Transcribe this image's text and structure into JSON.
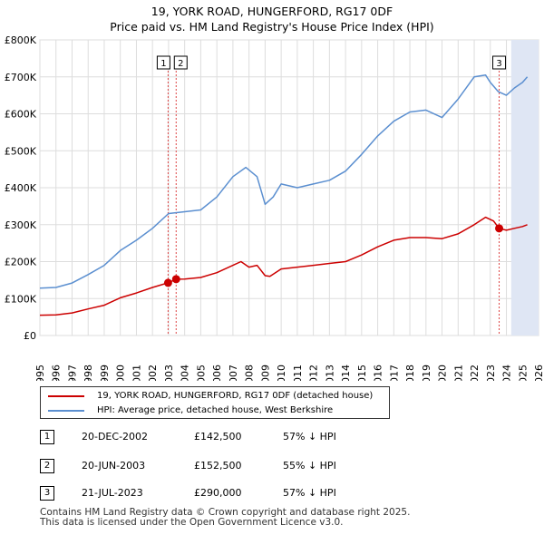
{
  "header": {
    "title_line1": "19, YORK ROAD, HUNGERFORD, RG17 0DF",
    "title_line2": "Price paid vs. HM Land Registry's House Price Index (HPI)"
  },
  "chart_data": {
    "type": "line",
    "title": "19, YORK ROAD, HUNGERFORD, RG17 0DF",
    "subtitle": "Price paid vs. HM Land Registry's House Price Index (HPI)",
    "xlabel": "",
    "ylabel": "",
    "xlim": [
      1995,
      2026
    ],
    "ylim": [
      0,
      800000
    ],
    "x_ticks": [
      "1995",
      "1996",
      "1997",
      "1998",
      "1999",
      "2000",
      "2001",
      "2002",
      "2003",
      "2004",
      "2005",
      "2006",
      "2007",
      "2008",
      "2009",
      "2010",
      "2011",
      "2012",
      "2013",
      "2014",
      "2015",
      "2016",
      "2017",
      "2018",
      "2019",
      "2020",
      "2021",
      "2022",
      "2023",
      "2024",
      "2025",
      "2026"
    ],
    "y_ticks": [
      {
        "value": 0,
        "label": "£0"
      },
      {
        "value": 100000,
        "label": "£100K"
      },
      {
        "value": 200000,
        "label": "£200K"
      },
      {
        "value": 300000,
        "label": "£300K"
      },
      {
        "value": 400000,
        "label": "£400K"
      },
      {
        "value": 500000,
        "label": "£500K"
      },
      {
        "value": 600000,
        "label": "£600K"
      },
      {
        "value": 700000,
        "label": "£700K"
      },
      {
        "value": 800000,
        "label": "£800K"
      }
    ],
    "grid": true,
    "shaded_region": {
      "from": 2024.3,
      "to": 2026
    },
    "series": [
      {
        "name": "19, YORK ROAD, HUNGERFORD, RG17 0DF (detached house)",
        "color": "#cc0000",
        "x": [
          1995,
          1996,
          1997,
          1998,
          1999,
          2000,
          2001,
          2002,
          2002.97,
          2003.47,
          2004,
          2005,
          2006,
          2007,
          2007.5,
          2008,
          2008.5,
          2009,
          2009.3,
          2010,
          2011,
          2012,
          2013,
          2014,
          2015,
          2016,
          2017,
          2018,
          2019,
          2020,
          2021,
          2022,
          2022.7,
          2023.2,
          2023.55,
          2024,
          2024.5,
          2025,
          2025.3
        ],
        "y": [
          55000,
          56000,
          61000,
          72000,
          82000,
          102000,
          115000,
          130000,
          142500,
          152500,
          153000,
          157000,
          170000,
          190000,
          200000,
          185000,
          190000,
          162000,
          160000,
          180000,
          185000,
          190000,
          195000,
          200000,
          218000,
          240000,
          258000,
          265000,
          265000,
          262000,
          275000,
          300000,
          320000,
          310000,
          290000,
          285000,
          290000,
          295000,
          300000
        ]
      },
      {
        "name": "HPI: Average price, detached house, West Berkshire",
        "color": "#5b8fd0",
        "x": [
          1995,
          1996,
          1997,
          1998,
          1999,
          2000,
          2001,
          2002,
          2003,
          2004,
          2005,
          2006,
          2007,
          2007.8,
          2008.5,
          2009,
          2009.5,
          2010,
          2011,
          2012,
          2013,
          2014,
          2015,
          2016,
          2017,
          2018,
          2019,
          2020,
          2021,
          2022,
          2022.7,
          2023,
          2023.5,
          2024,
          2024.5,
          2025,
          2025.3
        ],
        "y": [
          128000,
          130000,
          142000,
          165000,
          190000,
          230000,
          258000,
          290000,
          330000,
          335000,
          340000,
          375000,
          430000,
          455000,
          430000,
          355000,
          375000,
          410000,
          400000,
          410000,
          420000,
          445000,
          490000,
          540000,
          580000,
          605000,
          610000,
          590000,
          640000,
          700000,
          705000,
          685000,
          660000,
          650000,
          670000,
          685000,
          700000
        ]
      }
    ],
    "sales": [
      {
        "label": "1",
        "x": 2002.97,
        "price": 142500
      },
      {
        "label": "2",
        "x": 2003.47,
        "price": 152500
      },
      {
        "label": "3",
        "x": 2023.55,
        "price": 290000
      }
    ]
  },
  "legend": {
    "items": [
      {
        "label": "19, YORK ROAD, HUNGERFORD, RG17 0DF (detached house)",
        "color": "#cc0000"
      },
      {
        "label": "HPI: Average price, detached house, West Berkshire",
        "color": "#5b8fd0"
      }
    ]
  },
  "sales_table": [
    {
      "id": "1",
      "date": "20-DEC-2002",
      "price": "£142,500",
      "hpi": "57% ↓ HPI"
    },
    {
      "id": "2",
      "date": "20-JUN-2003",
      "price": "£152,500",
      "hpi": "55% ↓ HPI"
    },
    {
      "id": "3",
      "date": "21-JUL-2023",
      "price": "£290,000",
      "hpi": "57% ↓ HPI"
    }
  ],
  "footer": {
    "line1": "Contains HM Land Registry data © Crown copyright and database right 2025.",
    "line2": "This data is licensed under the Open Government Licence v3.0."
  }
}
